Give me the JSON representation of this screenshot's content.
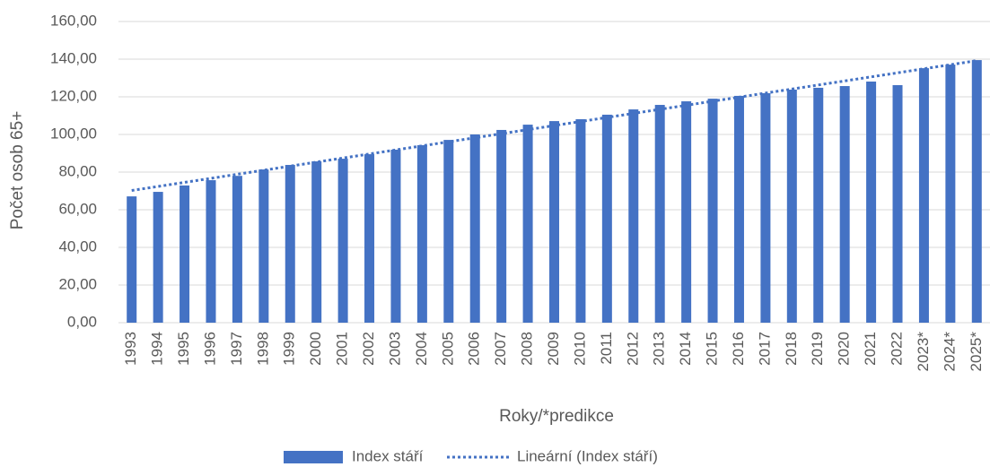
{
  "chart_data": {
    "type": "bar",
    "y_label": "Počet osob 65+",
    "x_label": "Roky/*predikce",
    "categories": [
      "1993",
      "1994",
      "1995",
      "1996",
      "1997",
      "1998",
      "1999",
      "2000",
      "2001",
      "2002",
      "2003",
      "2004",
      "2005",
      "2006",
      "2007",
      "2008",
      "2009",
      "2010",
      "2011",
      "2012",
      "2013",
      "2014",
      "2015",
      "2016",
      "2017",
      "2018",
      "2019",
      "2020",
      "2021",
      "2022",
      "2023*",
      "2024*",
      "2025*"
    ],
    "series": [
      {
        "name": "Index stáří",
        "color": "#4472c4",
        "values": [
          67.1,
          69.5,
          72.9,
          75.7,
          78.0,
          81.4,
          83.8,
          85.7,
          87.1,
          89.5,
          91.9,
          94.3,
          97.1,
          100.0,
          102.4,
          105.2,
          107.1,
          108.1,
          110.5,
          113.3,
          115.7,
          117.6,
          119.0,
          120.5,
          121.9,
          123.8,
          124.8,
          125.7,
          128.1,
          126.2,
          135.2,
          137.1,
          139.5
        ]
      }
    ],
    "trendline": {
      "name": "Lineární (Index stáří)",
      "kind": "linear",
      "color": "#4472c4"
    },
    "ylim": [
      0,
      160
    ],
    "yticks": [
      {
        "value": 0,
        "label": "0,00"
      },
      {
        "value": 20,
        "label": "20,00"
      },
      {
        "value": 40,
        "label": "40,00"
      },
      {
        "value": 60,
        "label": "60,00"
      },
      {
        "value": 80,
        "label": "80,00"
      },
      {
        "value": 100,
        "label": "100,00"
      },
      {
        "value": 120,
        "label": "120,00"
      },
      {
        "value": 140,
        "label": "140,00"
      },
      {
        "value": 160,
        "label": "160,00"
      }
    ],
    "grid": true
  }
}
